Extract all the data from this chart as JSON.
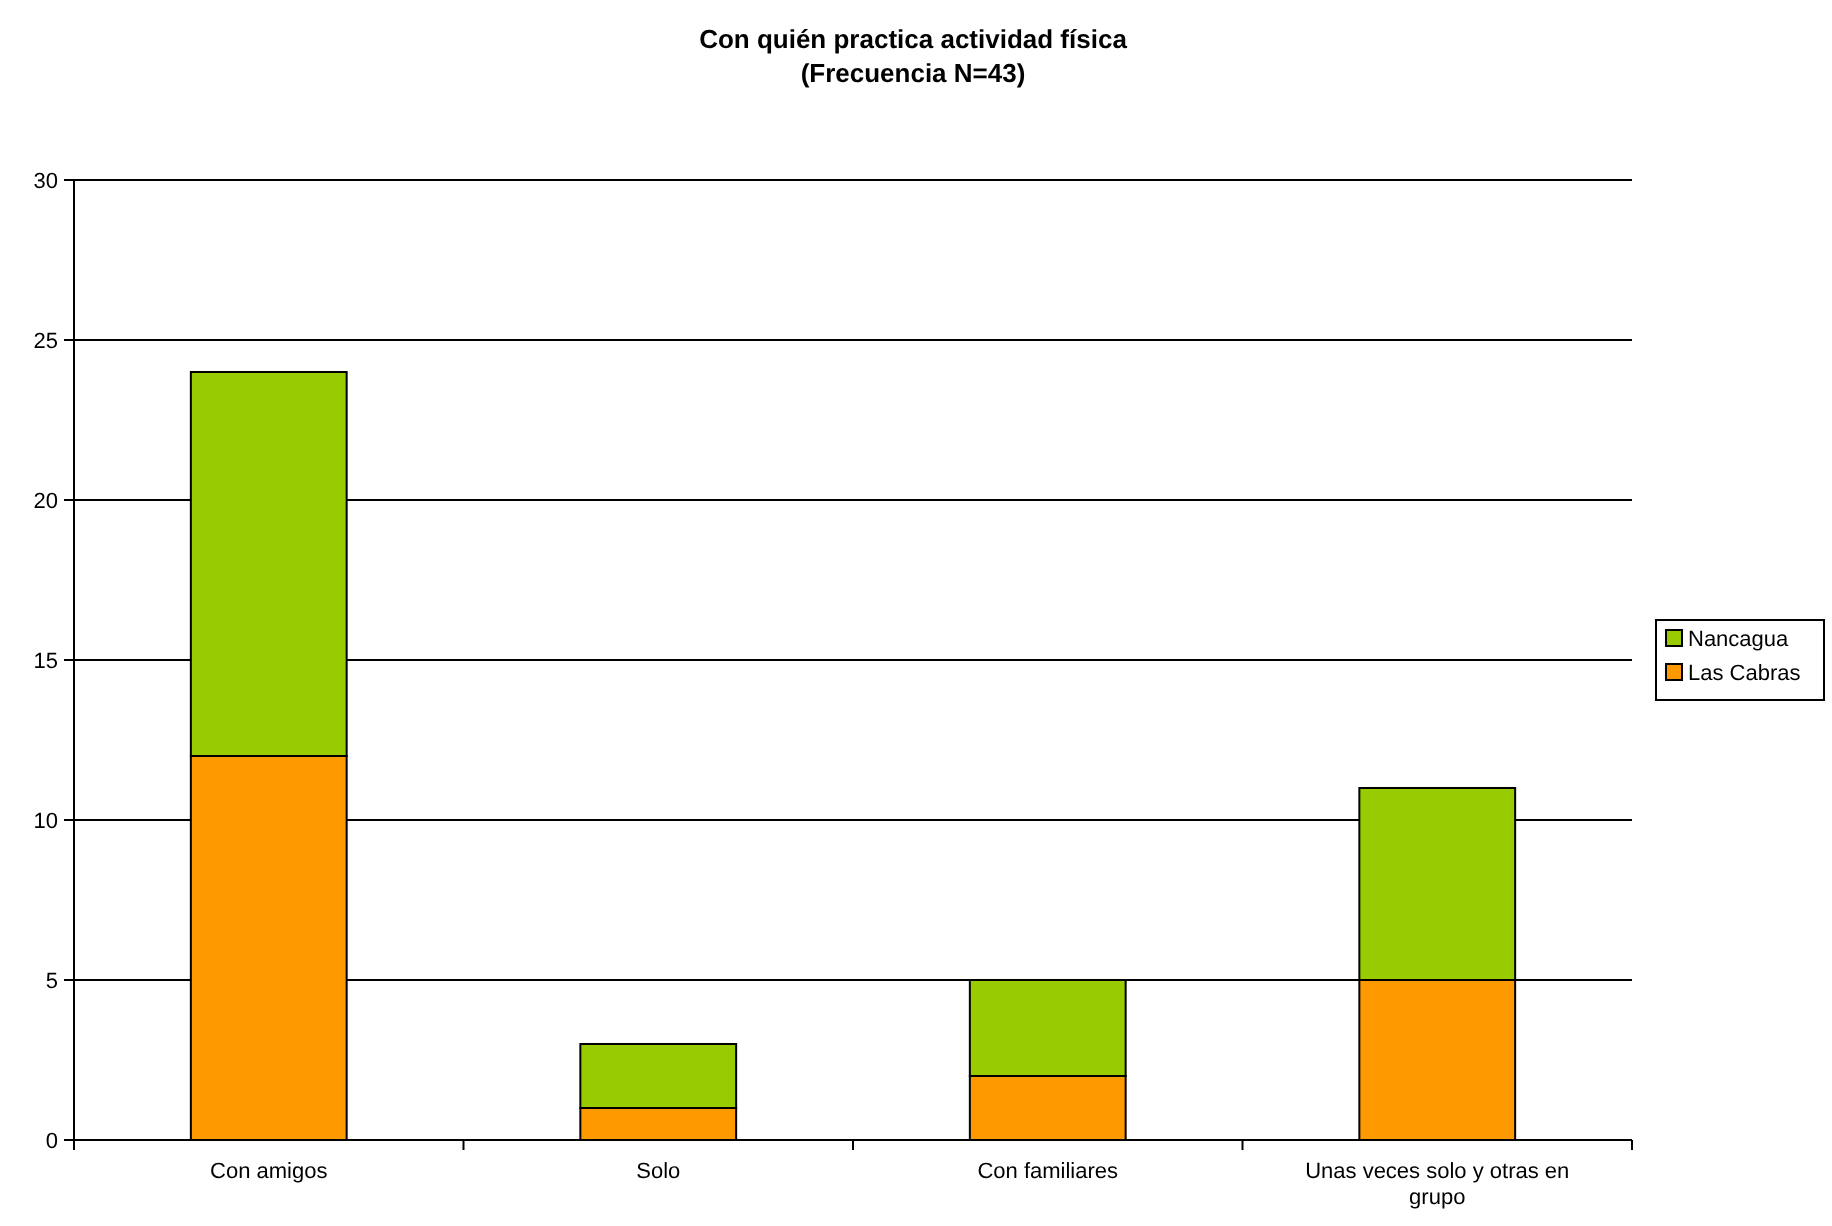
{
  "chart_data": {
    "type": "bar",
    "title": "Con quién practica actividad física",
    "subtitle": "(Frecuencia N=43)",
    "categories": [
      "Con amigos",
      "Solo",
      "Con familiares",
      "Unas veces solo y otras en grupo"
    ],
    "stacked": true,
    "series": [
      {
        "name": "Las Cabras",
        "color": "#ff9900",
        "values": [
          12,
          1,
          2,
          5
        ]
      },
      {
        "name": "Nancagua",
        "color": "#99cc00",
        "values": [
          12,
          2,
          3,
          6
        ]
      }
    ],
    "ylim": [
      0,
      30
    ],
    "yticks": [
      0,
      5,
      10,
      15,
      20,
      25,
      30
    ],
    "grid": "y",
    "legend": "right"
  }
}
